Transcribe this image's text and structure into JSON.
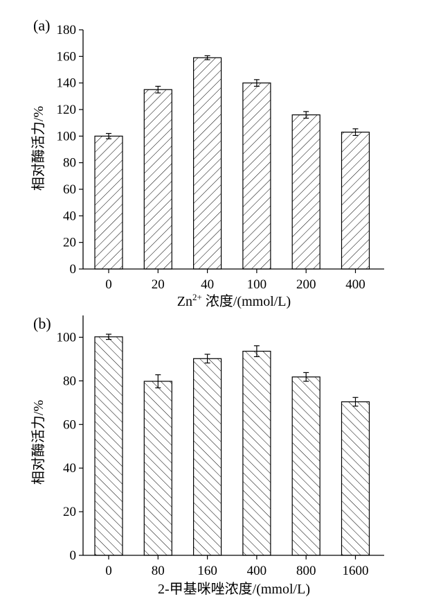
{
  "chart_data": [
    {
      "type": "bar",
      "panel_label": "(a)",
      "categories": [
        "0",
        "20",
        "40",
        "100",
        "200",
        "400"
      ],
      "values": [
        100,
        135,
        159,
        140,
        116,
        103
      ],
      "errors": [
        2,
        2.5,
        1.5,
        2.5,
        2.5,
        2.5
      ],
      "xlabel_base": "Zn",
      "xlabel_sup": "2+",
      "xlabel_rest": " 浓度/(mmol/L)",
      "ylabel": "相对酶活力/%",
      "ylim": [
        0,
        180
      ],
      "yticks": [
        0,
        20,
        40,
        60,
        80,
        100,
        120,
        140,
        160,
        180
      ],
      "hatch": "forward-diagonal",
      "grid": false
    },
    {
      "type": "bar",
      "panel_label": "(b)",
      "categories": [
        "0",
        "80",
        "160",
        "400",
        "800",
        "1600"
      ],
      "values": [
        100.2,
        79.8,
        90.2,
        93.6,
        81.8,
        70.4
      ],
      "errors": [
        1.2,
        3,
        2,
        2.5,
        2,
        2
      ],
      "xlabel_base": "2-甲基咪唑浓度/(mmol/L)",
      "xlabel_sup": "",
      "xlabel_rest": "",
      "ylabel": "相对酶活力/%",
      "ylim": [
        0,
        110
      ],
      "yticks": [
        0,
        20,
        40,
        60,
        80,
        100
      ],
      "hatch": "back-diagonal",
      "grid": false
    }
  ]
}
